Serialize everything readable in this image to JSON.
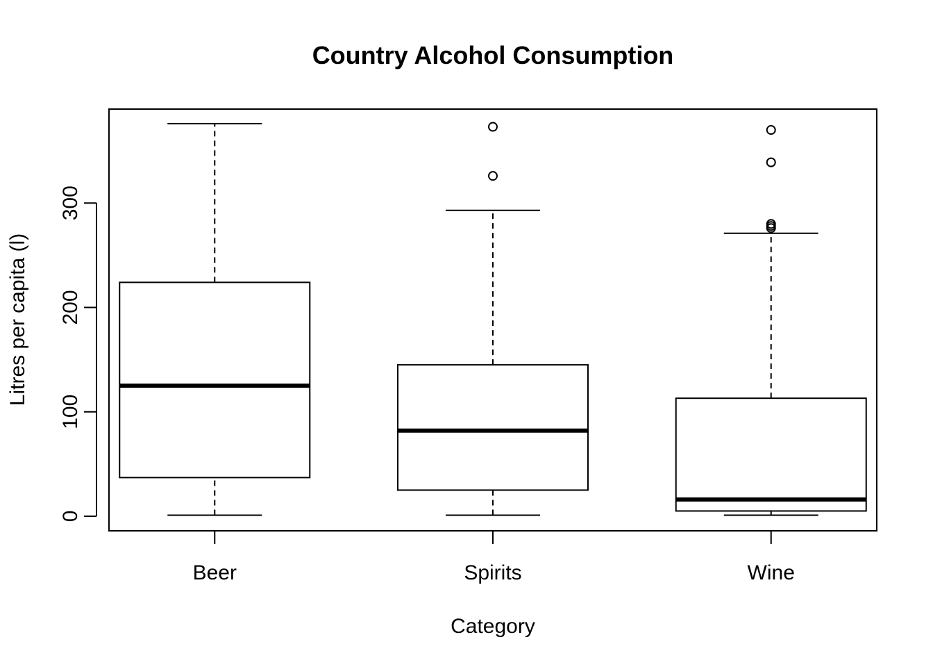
{
  "chart_data": {
    "type": "boxplot",
    "title": "Country Alcohol Consumption",
    "xlabel": "Category",
    "ylabel": "Litres per capita (l)",
    "ylim": [
      -14,
      390
    ],
    "yticks": [
      0,
      100,
      200,
      300
    ],
    "grid": false,
    "categories": [
      "Beer",
      "Spirits",
      "Wine"
    ],
    "boxes": [
      {
        "category": "Beer",
        "whisker_low": 1,
        "q1": 37,
        "median": 125,
        "q3": 224,
        "whisker_high": 376,
        "outliers": []
      },
      {
        "category": "Spirits",
        "whisker_low": 1,
        "q1": 25,
        "median": 82,
        "q3": 145,
        "whisker_high": 293,
        "outliers": [
          326,
          373
        ]
      },
      {
        "category": "Wine",
        "whisker_low": 1,
        "q1": 5,
        "median": 16,
        "q3": 113,
        "whisker_high": 271,
        "outliers": [
          276,
          278,
          280,
          339,
          370
        ]
      }
    ]
  }
}
